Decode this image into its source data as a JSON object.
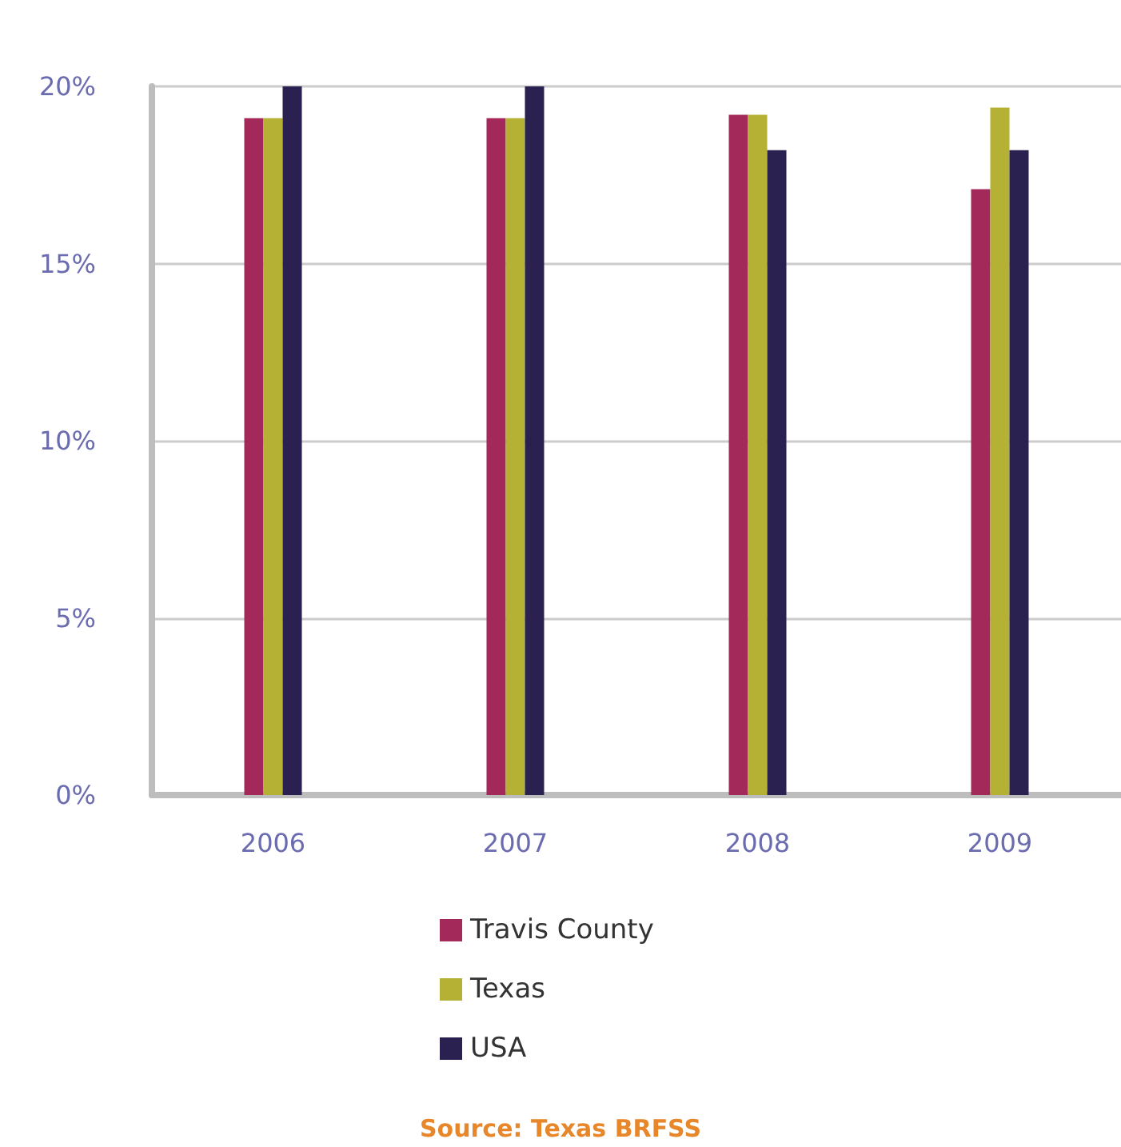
{
  "chart_data": {
    "type": "bar",
    "categories": [
      "2006",
      "2007",
      "2008",
      "2009"
    ],
    "series": [
      {
        "name": "Travis County",
        "color": "#a3295a",
        "values": [
          19.1,
          19.1,
          19.2,
          17.1
        ]
      },
      {
        "name": "Texas",
        "color": "#b4b134",
        "values": [
          19.1,
          19.1,
          19.2,
          19.4
        ]
      },
      {
        "name": "USA",
        "color": "#2b2150",
        "values": [
          20.0,
          20.0,
          18.2,
          18.2
        ]
      }
    ],
    "ylim": [
      0,
      20
    ],
    "yticks": [
      {
        "value": 0,
        "label": "0%"
      },
      {
        "value": 5,
        "label": "5%"
      },
      {
        "value": 10,
        "label": "10%"
      },
      {
        "value": 15,
        "label": "15%"
      },
      {
        "value": 20,
        "label": "20%"
      }
    ],
    "grid": "y",
    "legend": "bottom",
    "annotations": [
      "Source: Texas BRFSS"
    ]
  }
}
